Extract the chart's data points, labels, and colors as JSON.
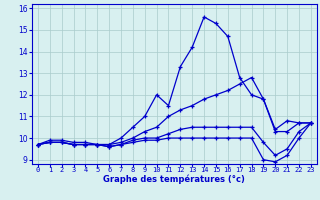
{
  "xlabel": "Graphe des températures (°c)",
  "bg_color": "#d8f0f0",
  "grid_color": "#aacccc",
  "line_color": "#0000cc",
  "xlim": [
    -0.5,
    23.5
  ],
  "ylim": [
    8.8,
    16.2
  ],
  "xticks": [
    0,
    1,
    2,
    3,
    4,
    5,
    6,
    7,
    8,
    9,
    10,
    11,
    12,
    13,
    14,
    15,
    16,
    17,
    18,
    19,
    20,
    21,
    22,
    23
  ],
  "yticks": [
    9,
    10,
    11,
    12,
    13,
    14,
    15,
    16
  ],
  "series": {
    "temp": {
      "x": [
        0,
        1,
        2,
        3,
        4,
        5,
        6,
        7,
        8,
        9,
        10,
        11,
        12,
        13,
        14,
        15,
        16,
        17,
        18,
        19,
        20,
        21,
        22,
        23
      ],
      "y": [
        9.7,
        9.9,
        9.9,
        9.8,
        9.8,
        9.7,
        9.7,
        10.0,
        10.5,
        11.0,
        12.0,
        11.5,
        13.3,
        14.2,
        15.6,
        15.3,
        14.7,
        12.8,
        12.0,
        11.8,
        10.4,
        10.8,
        10.7,
        10.7
      ]
    },
    "dew1": {
      "x": [
        0,
        1,
        2,
        3,
        4,
        5,
        6,
        7,
        8,
        9,
        10,
        11,
        12,
        13,
        14,
        15,
        16,
        17,
        18,
        19,
        20,
        21,
        22,
        23
      ],
      "y": [
        9.7,
        9.8,
        9.8,
        9.7,
        9.7,
        9.7,
        9.7,
        9.8,
        10.0,
        10.3,
        10.5,
        11.0,
        11.3,
        11.5,
        11.8,
        12.0,
        12.2,
        12.5,
        12.8,
        11.8,
        10.3,
        10.3,
        10.7,
        10.7
      ]
    },
    "dew2": {
      "x": [
        0,
        1,
        2,
        3,
        4,
        5,
        6,
        7,
        8,
        9,
        10,
        11,
        12,
        13,
        14,
        15,
        16,
        17,
        18,
        19,
        20,
        21,
        22,
        23
      ],
      "y": [
        9.7,
        9.8,
        9.8,
        9.7,
        9.7,
        9.7,
        9.6,
        9.7,
        9.9,
        10.0,
        10.0,
        10.2,
        10.4,
        10.5,
        10.5,
        10.5,
        10.5,
        10.5,
        10.5,
        9.8,
        9.2,
        9.5,
        10.3,
        10.7
      ]
    },
    "dew3": {
      "x": [
        0,
        1,
        2,
        3,
        4,
        5,
        6,
        7,
        8,
        9,
        10,
        11,
        12,
        13,
        14,
        15,
        16,
        17,
        18,
        19,
        20,
        21,
        22,
        23
      ],
      "y": [
        9.7,
        9.8,
        9.8,
        9.7,
        9.7,
        9.7,
        9.6,
        9.7,
        9.8,
        9.9,
        9.9,
        10.0,
        10.0,
        10.0,
        10.0,
        10.0,
        10.0,
        10.0,
        10.0,
        9.0,
        8.9,
        9.2,
        10.0,
        10.7
      ]
    }
  }
}
